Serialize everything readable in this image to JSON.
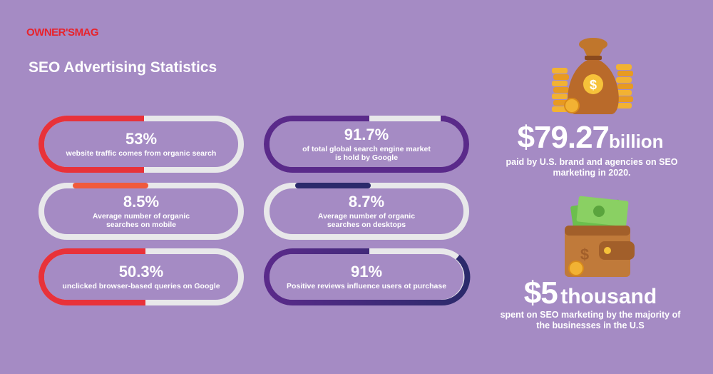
{
  "brand": {
    "logo_text": "OWNER'SMAG"
  },
  "title": "SEO Advertising Statistics",
  "stats": [
    {
      "value": "53%",
      "description": "website traffic comes from organic search"
    },
    {
      "value": "91.7%",
      "description": "of total global search engine market is hold by Google"
    },
    {
      "value": "8.5%",
      "description": "Average number of organic searches on mobile"
    },
    {
      "value": "8.7%",
      "description": "Average number of organic searches on desktops"
    },
    {
      "value": "50.3%",
      "description": "unclicked browser-based queries on Google"
    },
    {
      "value": "91%",
      "description": "Positive reviews influence users ot purchase"
    }
  ],
  "highlights": [
    {
      "value": "$79.27",
      "unit": "billion",
      "description": "paid by U.S. brand and agencies on SEO marketing in 2020."
    },
    {
      "value": "$5",
      "unit": "thousand",
      "description": "spent on SEO marketing by the majority of the businesses in the U.S"
    }
  ],
  "colors": {
    "background": "#a58bc4",
    "red": "#e8323a",
    "orange": "#f05a3c",
    "purple": "#5a2a8a",
    "navy": "#2b2a6b",
    "track": "#e8e8ea",
    "brand": "#e8232c"
  },
  "icons": [
    "money-bag-icon",
    "wallet-icon"
  ]
}
